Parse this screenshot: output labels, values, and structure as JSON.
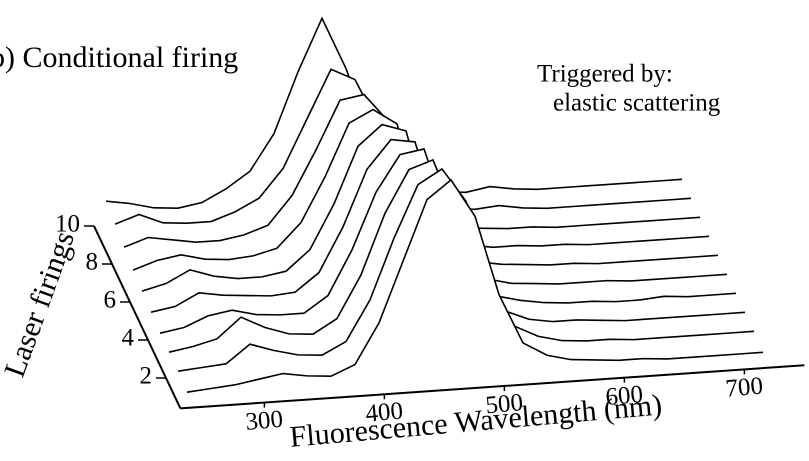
{
  "chart_data": {
    "type": "waterfall",
    "title": "b) Conditional firing",
    "annotation": [
      "Triggered by:",
      "elastic scattering"
    ],
    "x_label": "Fluorescence Wavelength (nm)",
    "z_label": "Laser firings",
    "color": "#000000",
    "x": [
      240,
      260,
      280,
      300,
      320,
      340,
      360,
      380,
      400,
      420,
      440,
      460,
      480,
      500,
      520,
      540,
      560,
      580,
      600,
      620,
      640,
      660,
      680,
      700,
      720
    ],
    "xlim": [
      230,
      750
    ],
    "xticks": [
      300,
      400,
      500,
      600,
      700
    ],
    "z": [
      1,
      2,
      3,
      4,
      5,
      6,
      7,
      8,
      9,
      10
    ],
    "zlim": [
      1,
      10
    ],
    "zticks": [
      2,
      4,
      6,
      8,
      10
    ],
    "series": [
      {
        "values": [
          2,
          3,
          4,
          6,
          8,
          6,
          5,
          10,
          30,
          60,
          90,
          99,
          80,
          40,
          15,
          8,
          5,
          4,
          3,
          3,
          2,
          2,
          2,
          2,
          2
        ]
      },
      {
        "values": [
          3,
          4,
          5,
          14,
          10,
          7,
          6,
          12,
          32,
          62,
          88,
          95,
          78,
          38,
          14,
          8,
          5,
          4,
          4,
          3,
          3,
          3,
          3,
          3,
          3
        ]
      },
      {
        "values": [
          3,
          5,
          8,
          18,
          12,
          8,
          7,
          14,
          35,
          65,
          86,
          90,
          60,
          30,
          12,
          7,
          5,
          5,
          4,
          3,
          3,
          3,
          3,
          3,
          3
        ]
      },
      {
        "values": [
          3,
          5,
          10,
          12,
          9,
          8,
          8,
          16,
          38,
          66,
          84,
          86,
          50,
          22,
          10,
          7,
          5,
          4,
          4,
          3,
          3,
          4,
          3,
          3,
          3
        ]
      },
      {
        "values": [
          4,
          6,
          12,
          10,
          9,
          8,
          9,
          18,
          40,
          68,
          82,
          80,
          40,
          18,
          9,
          6,
          5,
          4,
          4,
          4,
          3,
          3,
          3,
          3,
          3
        ]
      },
      {
        "values": [
          5,
          8,
          14,
          10,
          8,
          8,
          10,
          20,
          42,
          70,
          80,
          76,
          32,
          15,
          8,
          6,
          5,
          4,
          4,
          3,
          3,
          3,
          3,
          3,
          3
        ]
      },
      {
        "values": [
          6,
          10,
          12,
          9,
          8,
          9,
          12,
          24,
          46,
          72,
          78,
          70,
          26,
          12,
          7,
          5,
          5,
          4,
          4,
          3,
          3,
          3,
          3,
          3,
          3
        ]
      },
      {
        "values": [
          8,
          12,
          10,
          8,
          8,
          10,
          14,
          28,
          50,
          74,
          76,
          62,
          20,
          10,
          6,
          5,
          4,
          4,
          3,
          3,
          3,
          3,
          3,
          3,
          3
        ]
      },
      {
        "values": [
          10,
          14,
          9,
          8,
          8,
          12,
          18,
          32,
          56,
          80,
          74,
          50,
          16,
          8,
          6,
          5,
          6,
          4,
          3,
          3,
          3,
          3,
          3,
          3,
          3
        ]
      },
      {
        "values": [
          12,
          10,
          7,
          6,
          8,
          14,
          22,
          40,
          70,
          96,
          70,
          36,
          12,
          6,
          5,
          4,
          6,
          4,
          3,
          3,
          3,
          3,
          3,
          3,
          3
        ]
      }
    ]
  }
}
